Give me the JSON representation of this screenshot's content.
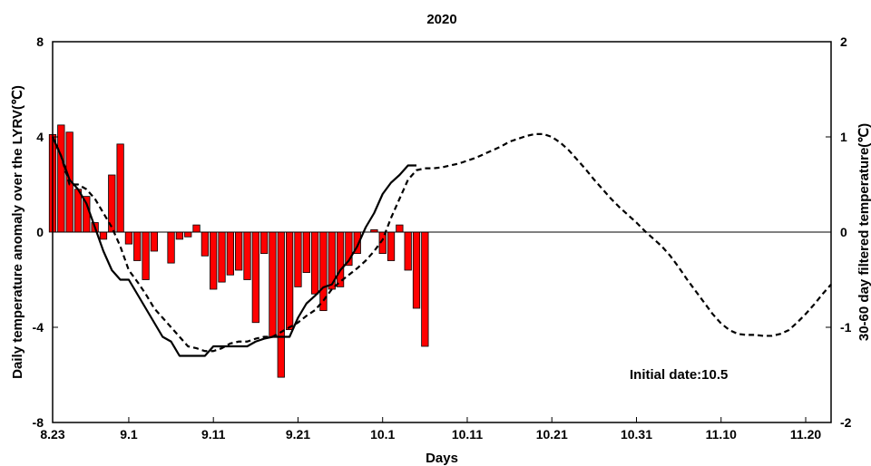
{
  "chart_data": {
    "type": "bar",
    "title": "2020",
    "xlabel": "Days",
    "ylabel_left": "Daily temperature anomaly over the LYRV(℃)",
    "ylabel_right": "30-60 day filtered temperature(℃)",
    "annotation": "Initial date:10.5",
    "x_range": [
      0,
      92
    ],
    "x_ticks": [
      {
        "pos": 0,
        "label": "8.23"
      },
      {
        "pos": 9,
        "label": "9.1"
      },
      {
        "pos": 19,
        "label": "9.11"
      },
      {
        "pos": 29,
        "label": "9.21"
      },
      {
        "pos": 39,
        "label": "10.1"
      },
      {
        "pos": 49,
        "label": "10.11"
      },
      {
        "pos": 59,
        "label": "10.21"
      },
      {
        "pos": 69,
        "label": "10.31"
      },
      {
        "pos": 79,
        "label": "11.10"
      },
      {
        "pos": 89,
        "label": "11.20"
      }
    ],
    "y_left": {
      "range": [
        -8,
        8
      ],
      "ticks": [
        -8,
        -4,
        0,
        4,
        8
      ]
    },
    "y_right": {
      "range": [
        -2,
        2
      ],
      "ticks": [
        -2,
        -1,
        0,
        1,
        2
      ]
    },
    "series": [
      {
        "kind": "bar",
        "axis": "left",
        "color": "#ff0000",
        "x": [
          0,
          1,
          2,
          3,
          4,
          5,
          6,
          7,
          8,
          9,
          10,
          11,
          12,
          13,
          14,
          15,
          16,
          17,
          18,
          19,
          20,
          21,
          22,
          23,
          24,
          25,
          26,
          27,
          28,
          29,
          30,
          31,
          32,
          33,
          34,
          35,
          36,
          37,
          38,
          39,
          40,
          41
        ],
        "values": [
          4.1,
          4.5,
          4.2,
          1.8,
          1.5,
          0.4,
          -0.3,
          2.4,
          3.7,
          -0.5,
          -1.2,
          -2.0,
          -0.8,
          0,
          -1.3,
          -0.3,
          -0.2,
          0.3,
          -1.0,
          -2.4,
          -2.1,
          -1.8,
          -1.6,
          -2.0,
          -3.8,
          -0.9,
          -4.4,
          -6.1,
          -4.1,
          -2.3,
          -1.7,
          -2.6,
          -3.3,
          -2.4,
          -2.3,
          -1.4,
          -0.9,
          0,
          0.1,
          -0.9,
          -1.2,
          0.3
        ]
      },
      {
        "kind": "bar",
        "axis": "left",
        "color": "#ff0000",
        "x": [
          42,
          43,
          44
        ],
        "values": [
          -1.6,
          -3.2,
          -4.8
        ]
      },
      {
        "kind": "line",
        "style": "solid",
        "axis": "right",
        "color": "#000000",
        "x": [
          0,
          1,
          2,
          3,
          4,
          5,
          6,
          7,
          8,
          9,
          10,
          11,
          12,
          13,
          14,
          15,
          16,
          17,
          18,
          19,
          20,
          21,
          22,
          23,
          24,
          25,
          26,
          27,
          28,
          29,
          30,
          31,
          32,
          33,
          34,
          35,
          36,
          37,
          38,
          39,
          40,
          41,
          42,
          43
        ],
        "values": [
          1.0,
          0.8,
          0.55,
          0.45,
          0.3,
          0.05,
          -0.2,
          -0.4,
          -0.5,
          -0.5,
          -0.65,
          -0.8,
          -0.95,
          -1.1,
          -1.15,
          -1.3,
          -1.3,
          -1.3,
          -1.3,
          -1.2,
          -1.2,
          -1.2,
          -1.2,
          -1.2,
          -1.15,
          -1.12,
          -1.1,
          -1.1,
          -1.1,
          -0.9,
          -0.75,
          -0.67,
          -0.58,
          -0.55,
          -0.4,
          -0.3,
          -0.15,
          0.05,
          0.2,
          0.4,
          0.52,
          0.6,
          0.7,
          0.7
        ]
      },
      {
        "kind": "line",
        "style": "dashed",
        "axis": "right",
        "color": "#000000",
        "x": [
          0,
          1,
          2,
          3,
          4,
          5,
          6,
          7,
          8,
          9,
          10,
          11,
          12,
          13,
          14,
          15,
          16,
          17,
          18,
          19,
          20,
          21,
          22,
          23,
          24,
          25,
          26,
          27,
          28,
          29,
          30,
          31,
          32,
          33,
          34,
          35,
          36,
          37,
          38,
          39,
          40,
          41,
          42,
          43,
          44,
          45,
          46,
          47,
          48,
          49,
          50,
          51,
          52,
          53,
          54,
          55,
          56,
          57,
          58,
          59,
          60,
          61,
          62,
          63,
          64,
          65,
          66,
          67,
          68,
          69,
          70,
          71,
          72,
          73,
          74,
          75,
          76,
          77,
          78,
          79,
          80,
          81,
          82,
          83,
          84,
          85,
          86,
          87,
          88,
          89,
          90,
          91,
          92
        ],
        "values": [
          1.0,
          0.8,
          0.5,
          0.5,
          0.45,
          0.35,
          0.2,
          0.05,
          -0.15,
          -0.4,
          -0.52,
          -0.65,
          -0.8,
          -0.9,
          -1.0,
          -1.1,
          -1.2,
          -1.22,
          -1.25,
          -1.25,
          -1.22,
          -1.17,
          -1.15,
          -1.15,
          -1.12,
          -1.1,
          -1.1,
          -1.05,
          -1.0,
          -0.95,
          -0.88,
          -0.82,
          -0.72,
          -0.6,
          -0.52,
          -0.45,
          -0.38,
          -0.3,
          -0.2,
          -0.08,
          0.15,
          0.35,
          0.55,
          0.65,
          0.67,
          0.67,
          0.68,
          0.7,
          0.72,
          0.75,
          0.78,
          0.82,
          0.86,
          0.9,
          0.95,
          0.98,
          1.01,
          1.03,
          1.03,
          1.0,
          0.94,
          0.86,
          0.76,
          0.66,
          0.55,
          0.45,
          0.35,
          0.26,
          0.18,
          0.1,
          0.01,
          -0.07,
          -0.15,
          -0.25,
          -0.37,
          -0.5,
          -0.62,
          -0.74,
          -0.86,
          -0.96,
          -1.03,
          -1.07,
          -1.08,
          -1.08,
          -1.09,
          -1.09,
          -1.07,
          -1.03,
          -0.95,
          -0.86,
          -0.76,
          -0.65,
          -0.55
        ]
      }
    ],
    "legend": "none",
    "grid": false
  }
}
